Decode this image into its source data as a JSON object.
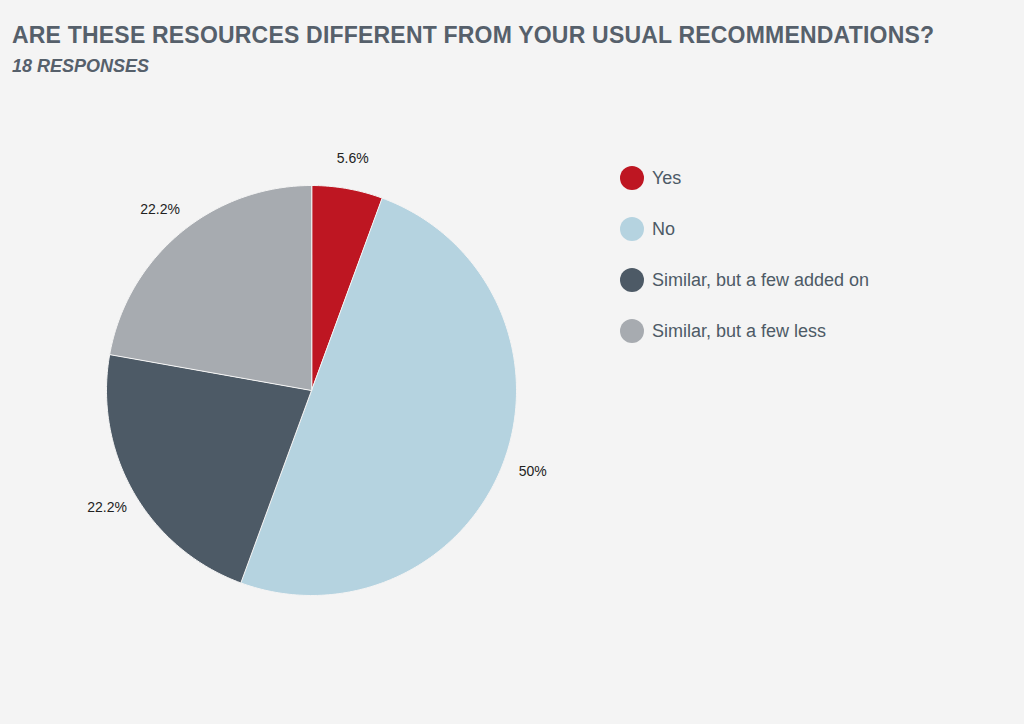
{
  "chart_data": {
    "type": "pie",
    "title": "ARE THESE RESOURCES DIFFERENT FROM YOUR USUAL RECOMMENDATIONS?",
    "subtitle": "18 RESPONSES",
    "categories": [
      "Yes",
      "No",
      "Similar, but a few added on",
      "Similar, but a few less"
    ],
    "values": [
      5.6,
      50,
      22.2,
      22.2
    ],
    "value_labels": [
      "5.6%",
      "50%",
      "22.2%",
      "22.2%"
    ],
    "colors": [
      "#be1622",
      "#b5d3e0",
      "#4d5a66",
      "#a7abb0"
    ],
    "data_labels": true,
    "legend": "right"
  }
}
